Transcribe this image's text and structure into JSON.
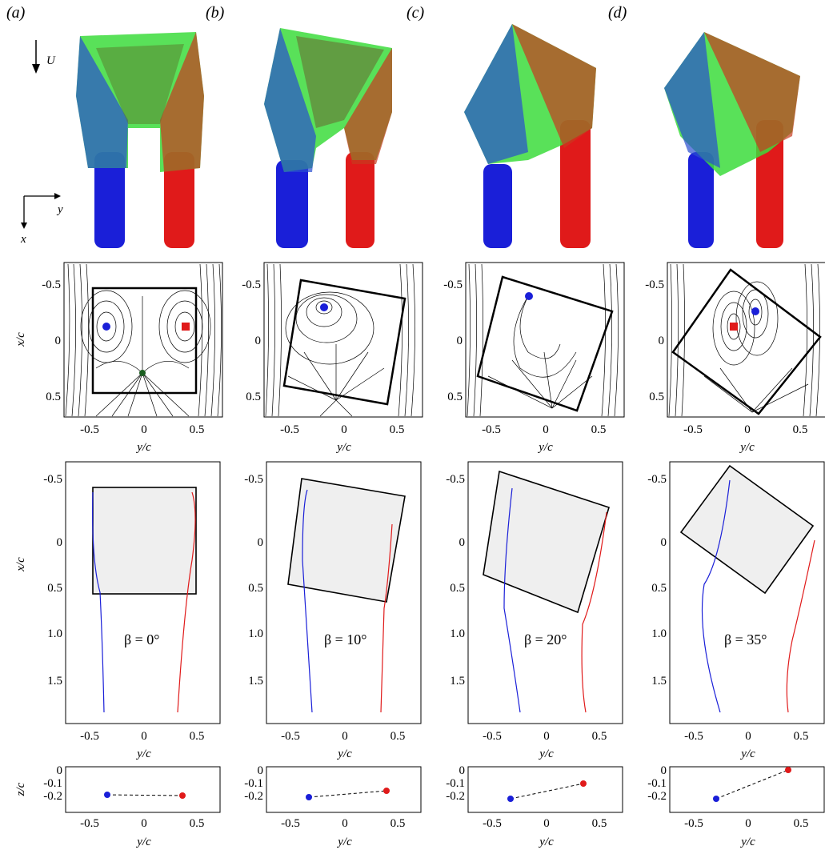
{
  "figure": {
    "panel_labels": [
      "(a)",
      "(b)",
      "(c)",
      "(d)"
    ],
    "iso_axes": {
      "flow": "U",
      "y": "y",
      "x": "x"
    },
    "colors": {
      "blue": "#1a1fd8",
      "red": "#e01a1a",
      "green": "#3cdc3c",
      "shade": "#efefef"
    },
    "streamline_axes": {
      "xlabel": "y/c",
      "ylabel": "x/c",
      "xticks": [
        "-0.5",
        "0",
        "0.5"
      ],
      "yticks": [
        "-0.5",
        "0",
        "0.5"
      ]
    },
    "trajectory_axes": {
      "xlabel": "y/c",
      "ylabel": "x/c",
      "xticks": [
        "-0.5",
        "0",
        "0.5"
      ],
      "yticks": [
        "-0.5",
        "0",
        "0.5",
        "1.0",
        "1.5"
      ]
    },
    "z_axes": {
      "xlabel": "y/c",
      "ylabel": "z/c",
      "xticks": [
        "-0.5",
        "0",
        "0.5"
      ],
      "yticks": [
        "0",
        "-0.1",
        "-0.2"
      ]
    }
  },
  "chart_data": [
    {
      "type": "line",
      "beta_label": "β = 0°",
      "beta_deg": 0,
      "blue_core": [
        -0.37,
        1.8
      ],
      "red_core": [
        0.3,
        1.8
      ],
      "z_points": [
        {
          "y": -0.33,
          "z": -0.22
        },
        {
          "y": 0.33,
          "z": -0.225
        }
      ]
    },
    {
      "type": "line",
      "beta_label": "β = 10°",
      "beta_deg": 10,
      "blue_core": [
        -0.35,
        1.8
      ],
      "red_core": [
        0.35,
        1.8
      ],
      "z_points": [
        {
          "y": -0.33,
          "z": -0.235
        },
        {
          "y": 0.35,
          "z": -0.18
        }
      ]
    },
    {
      "type": "line",
      "beta_label": "β = 20°",
      "beta_deg": 20,
      "blue_core": [
        -0.28,
        1.8
      ],
      "red_core": [
        0.35,
        1.8
      ],
      "z_points": [
        {
          "y": -0.33,
          "z": -0.24
        },
        {
          "y": 0.33,
          "z": -0.12
        }
      ]
    },
    {
      "type": "line",
      "beta_label": "β = 35°",
      "beta_deg": 35,
      "blue_core": [
        -0.25,
        1.8
      ],
      "red_core": [
        0.38,
        1.8
      ],
      "z_points": [
        {
          "y": -0.3,
          "z": -0.24
        },
        {
          "y": 0.35,
          "z": -0.01
        }
      ]
    }
  ]
}
